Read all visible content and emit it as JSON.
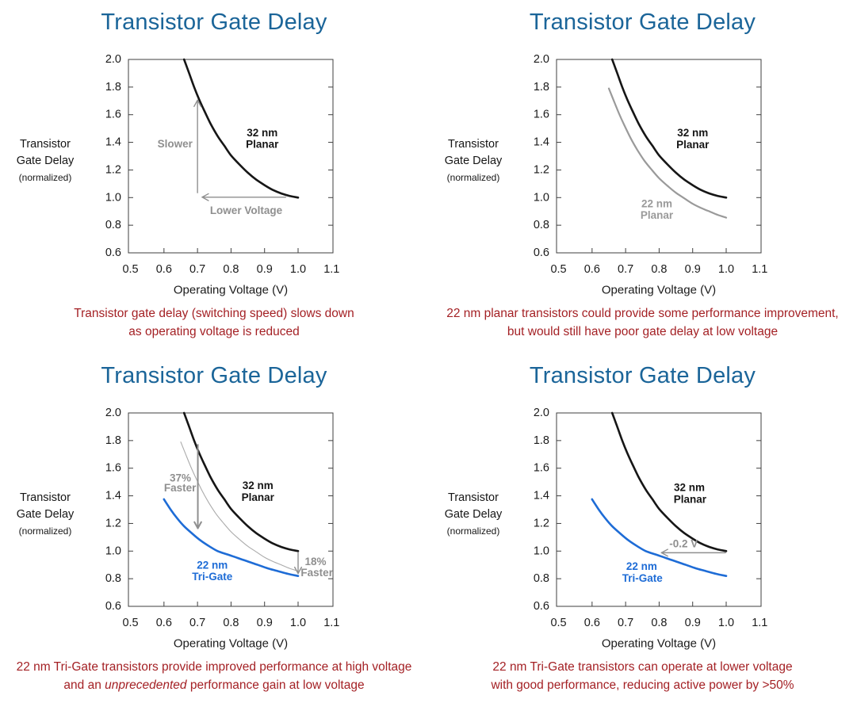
{
  "colors": {
    "title_blue": "#1b6599",
    "caption_red": "#a42125",
    "curve_black": "#161616",
    "curve_gray": "#9a9a9a",
    "curve_gray_thin": "#ababab",
    "curve_blue": "#1e6cd6",
    "annotation_gray": "#8f8f8f",
    "axis": "#3f3f3f",
    "tick_text": "#1a1a1a"
  },
  "chart_data": [
    {
      "type": "line",
      "title": "Transistor Gate Delay",
      "xlabel": "Operating Voltage (V)",
      "ylabel": [
        "Transistor",
        "Gate Delay",
        "(normalized)"
      ],
      "xlim": [
        0.5,
        1.1
      ],
      "ylim": [
        0.6,
        2.0
      ],
      "xticks": [
        0.5,
        0.6,
        0.7,
        0.8,
        0.9,
        1.0,
        1.1
      ],
      "yticks": [
        0.6,
        0.8,
        1.0,
        1.2,
        1.4,
        1.6,
        1.8,
        2.0
      ],
      "grid": false,
      "series": [
        {
          "name": "32 nm Planar",
          "color": "#161616",
          "width": 2.6,
          "points": [
            [
              0.66,
              2.0
            ],
            [
              0.675,
              1.9
            ],
            [
              0.69,
              1.8
            ],
            [
              0.705,
              1.71
            ],
            [
              0.72,
              1.63
            ],
            [
              0.74,
              1.53
            ],
            [
              0.76,
              1.445
            ],
            [
              0.78,
              1.375
            ],
            [
              0.8,
              1.305
            ],
            [
              0.825,
              1.24
            ],
            [
              0.85,
              1.18
            ],
            [
              0.875,
              1.13
            ],
            [
              0.9,
              1.09
            ],
            [
              0.925,
              1.055
            ],
            [
              0.95,
              1.03
            ],
            [
              0.975,
              1.012
            ],
            [
              1.0,
              1.0
            ]
          ]
        }
      ],
      "labels": [
        {
          "text": "32 nm",
          "x": 0.893,
          "y": 1.47,
          "color": "#161616"
        },
        {
          "text": "Planar",
          "x": 0.893,
          "y": 1.385,
          "color": "#161616"
        },
        {
          "text": "Slower",
          "x": 0.633,
          "y": 1.39,
          "color": "#8f8f8f"
        },
        {
          "text": "Lower Voltage",
          "x": 0.845,
          "y": 0.908,
          "color": "#8f8f8f"
        }
      ],
      "arrows": [
        {
          "from": [
            0.7,
            1.035
          ],
          "to": [
            0.7,
            1.705
          ],
          "width": 1.4
        },
        {
          "from": [
            0.963,
            1.003
          ],
          "to": [
            0.714,
            1.003
          ],
          "width": 1.4
        }
      ],
      "caption": [
        [
          {
            "text": "Transistor gate delay (switching speed) slows down",
            "italic": false
          }
        ],
        [
          {
            "text": "as operating voltage is reduced",
            "italic": false
          }
        ]
      ]
    },
    {
      "type": "line",
      "title": "Transistor Gate Delay",
      "xlabel": "Operating Voltage (V)",
      "ylabel": [
        "Transistor",
        "Gate Delay",
        "(normalized)"
      ],
      "xlim": [
        0.5,
        1.1
      ],
      "ylim": [
        0.6,
        2.0
      ],
      "xticks": [
        0.5,
        0.6,
        0.7,
        0.8,
        0.9,
        1.0,
        1.1
      ],
      "yticks": [
        0.6,
        0.8,
        1.0,
        1.2,
        1.4,
        1.6,
        1.8,
        2.0
      ],
      "grid": false,
      "series": [
        {
          "name": "22 nm Planar",
          "color": "#9a9a9a",
          "width": 2.2,
          "points": [
            [
              0.65,
              1.79
            ],
            [
              0.665,
              1.7
            ],
            [
              0.68,
              1.61
            ],
            [
              0.695,
              1.53
            ],
            [
              0.715,
              1.43
            ],
            [
              0.735,
              1.345
            ],
            [
              0.755,
              1.27
            ],
            [
              0.775,
              1.21
            ],
            [
              0.8,
              1.14
            ],
            [
              0.825,
              1.085
            ],
            [
              0.85,
              1.035
            ],
            [
              0.875,
              0.995
            ],
            [
              0.9,
              0.955
            ],
            [
              0.925,
              0.925
            ],
            [
              0.95,
              0.9
            ],
            [
              0.975,
              0.875
            ],
            [
              1.0,
              0.855
            ]
          ]
        },
        {
          "name": "32 nm Planar",
          "color": "#161616",
          "width": 2.6,
          "points": [
            [
              0.66,
              2.0
            ],
            [
              0.675,
              1.9
            ],
            [
              0.69,
              1.8
            ],
            [
              0.705,
              1.71
            ],
            [
              0.72,
              1.63
            ],
            [
              0.74,
              1.53
            ],
            [
              0.76,
              1.445
            ],
            [
              0.78,
              1.375
            ],
            [
              0.8,
              1.305
            ],
            [
              0.825,
              1.24
            ],
            [
              0.85,
              1.18
            ],
            [
              0.875,
              1.13
            ],
            [
              0.9,
              1.09
            ],
            [
              0.925,
              1.055
            ],
            [
              0.95,
              1.03
            ],
            [
              0.975,
              1.012
            ],
            [
              1.0,
              1.0
            ]
          ]
        }
      ],
      "labels": [
        {
          "text": "32 nm",
          "x": 0.9,
          "y": 1.468,
          "color": "#161616"
        },
        {
          "text": "Planar",
          "x": 0.9,
          "y": 1.382,
          "color": "#161616"
        },
        {
          "text": "22 nm",
          "x": 0.793,
          "y": 0.955,
          "color": "#9a9a9a"
        },
        {
          "text": "Planar",
          "x": 0.793,
          "y": 0.872,
          "color": "#9a9a9a"
        }
      ],
      "arrows": [],
      "caption": [
        [
          {
            "text": "22 nm planar transistors could provide some performance improvement,",
            "italic": false
          }
        ],
        [
          {
            "text": "but would still have poor gate delay at low voltage",
            "italic": false
          }
        ]
      ]
    },
    {
      "type": "line",
      "title": "Transistor Gate Delay",
      "xlabel": "Operating Voltage (V)",
      "ylabel": [
        "Transistor",
        "Gate Delay",
        "(normalized)"
      ],
      "xlim": [
        0.5,
        1.1
      ],
      "ylim": [
        0.6,
        2.0
      ],
      "xticks": [
        0.5,
        0.6,
        0.7,
        0.8,
        0.9,
        1.0,
        1.1
      ],
      "yticks": [
        0.6,
        0.8,
        1.0,
        1.2,
        1.4,
        1.6,
        1.8,
        2.0
      ],
      "grid": false,
      "series": [
        {
          "name": "22 nm Planar (reference)",
          "color": "#ababab",
          "width": 1.1,
          "points": [
            [
              0.65,
              1.79
            ],
            [
              0.665,
              1.7
            ],
            [
              0.68,
              1.61
            ],
            [
              0.695,
              1.53
            ],
            [
              0.715,
              1.43
            ],
            [
              0.735,
              1.345
            ],
            [
              0.755,
              1.27
            ],
            [
              0.775,
              1.21
            ],
            [
              0.8,
              1.14
            ],
            [
              0.825,
              1.085
            ],
            [
              0.85,
              1.035
            ],
            [
              0.875,
              0.995
            ],
            [
              0.9,
              0.955
            ],
            [
              0.925,
              0.925
            ],
            [
              0.95,
              0.9
            ],
            [
              0.975,
              0.875
            ],
            [
              1.0,
              0.855
            ]
          ]
        },
        {
          "name": "32 nm Planar",
          "color": "#161616",
          "width": 2.6,
          "points": [
            [
              0.66,
              2.0
            ],
            [
              0.675,
              1.9
            ],
            [
              0.69,
              1.8
            ],
            [
              0.705,
              1.71
            ],
            [
              0.72,
              1.63
            ],
            [
              0.74,
              1.53
            ],
            [
              0.76,
              1.445
            ],
            [
              0.78,
              1.375
            ],
            [
              0.8,
              1.305
            ],
            [
              0.825,
              1.24
            ],
            [
              0.85,
              1.18
            ],
            [
              0.875,
              1.13
            ],
            [
              0.9,
              1.09
            ],
            [
              0.925,
              1.055
            ],
            [
              0.95,
              1.03
            ],
            [
              0.975,
              1.012
            ],
            [
              1.0,
              1.0
            ]
          ]
        },
        {
          "name": "22 nm Tri-Gate",
          "color": "#1e6cd6",
          "width": 2.6,
          "points": [
            [
              0.6,
              1.375
            ],
            [
              0.62,
              1.3
            ],
            [
              0.64,
              1.235
            ],
            [
              0.66,
              1.18
            ],
            [
              0.685,
              1.125
            ],
            [
              0.71,
              1.075
            ],
            [
              0.735,
              1.035
            ],
            [
              0.76,
              1.0
            ],
            [
              0.79,
              0.975
            ],
            [
              0.82,
              0.95
            ],
            [
              0.85,
              0.925
            ],
            [
              0.88,
              0.9
            ],
            [
              0.91,
              0.875
            ],
            [
              0.94,
              0.855
            ],
            [
              0.97,
              0.835
            ],
            [
              1.0,
              0.82
            ]
          ]
        }
      ],
      "labels": [
        {
          "text": "32 nm",
          "x": 0.88,
          "y": 1.475,
          "color": "#161616"
        },
        {
          "text": "Planar",
          "x": 0.88,
          "y": 1.39,
          "color": "#161616"
        },
        {
          "text": "37%",
          "x": 0.649,
          "y": 1.53,
          "color": "#8f8f8f"
        },
        {
          "text": "Faster",
          "x": 0.648,
          "y": 1.458,
          "color": "#8f8f8f"
        },
        {
          "text": "18%",
          "x": 1.052,
          "y": 0.924,
          "color": "#8f8f8f"
        },
        {
          "text": "Faster",
          "x": 1.056,
          "y": 0.843,
          "color": "#8f8f8f"
        },
        {
          "text": "22 nm",
          "x": 0.744,
          "y": 0.898,
          "color": "#1e6cd6"
        },
        {
          "text": "Tri-Gate",
          "x": 0.744,
          "y": 0.815,
          "color": "#1e6cd6"
        }
      ],
      "arrows": [
        {
          "from": [
            0.701,
            1.77
          ],
          "to": [
            0.701,
            1.165
          ],
          "width": 2.0
        },
        {
          "from": [
            1.0,
            0.988
          ],
          "to": [
            1.0,
            0.838
          ],
          "width": 1.4
        }
      ],
      "caption": [
        [
          {
            "text": "22 nm Tri-Gate transistors provide improved performance at high voltage",
            "italic": false
          }
        ],
        [
          {
            "text": "and an ",
            "italic": false
          },
          {
            "text": "unprecedented",
            "italic": true
          },
          {
            "text": " performance gain at low voltage",
            "italic": false
          }
        ]
      ]
    },
    {
      "type": "line",
      "title": "Transistor Gate Delay",
      "xlabel": "Operating Voltage (V)",
      "ylabel": [
        "Transistor",
        "Gate Delay",
        "(normalized)"
      ],
      "xlim": [
        0.5,
        1.1
      ],
      "ylim": [
        0.6,
        2.0
      ],
      "xticks": [
        0.5,
        0.6,
        0.7,
        0.8,
        0.9,
        1.0,
        1.1
      ],
      "yticks": [
        0.6,
        0.8,
        1.0,
        1.2,
        1.4,
        1.6,
        1.8,
        2.0
      ],
      "grid": false,
      "series": [
        {
          "name": "32 nm Planar",
          "color": "#161616",
          "width": 2.6,
          "points": [
            [
              0.66,
              2.0
            ],
            [
              0.675,
              1.9
            ],
            [
              0.69,
              1.8
            ],
            [
              0.705,
              1.71
            ],
            [
              0.72,
              1.63
            ],
            [
              0.74,
              1.53
            ],
            [
              0.76,
              1.445
            ],
            [
              0.78,
              1.375
            ],
            [
              0.8,
              1.305
            ],
            [
              0.825,
              1.24
            ],
            [
              0.85,
              1.18
            ],
            [
              0.875,
              1.13
            ],
            [
              0.9,
              1.09
            ],
            [
              0.925,
              1.055
            ],
            [
              0.95,
              1.03
            ],
            [
              0.975,
              1.012
            ],
            [
              1.0,
              1.0
            ]
          ]
        },
        {
          "name": "22 nm Tri-Gate",
          "color": "#1e6cd6",
          "width": 2.6,
          "points": [
            [
              0.6,
              1.375
            ],
            [
              0.62,
              1.3
            ],
            [
              0.64,
              1.235
            ],
            [
              0.66,
              1.18
            ],
            [
              0.685,
              1.125
            ],
            [
              0.71,
              1.075
            ],
            [
              0.735,
              1.035
            ],
            [
              0.76,
              1.0
            ],
            [
              0.79,
              0.975
            ],
            [
              0.82,
              0.95
            ],
            [
              0.85,
              0.925
            ],
            [
              0.88,
              0.9
            ],
            [
              0.91,
              0.875
            ],
            [
              0.94,
              0.855
            ],
            [
              0.97,
              0.835
            ],
            [
              1.0,
              0.82
            ]
          ]
        }
      ],
      "labels": [
        {
          "text": "32 nm",
          "x": 0.89,
          "y": 1.462,
          "color": "#161616"
        },
        {
          "text": "Planar",
          "x": 0.892,
          "y": 1.374,
          "color": "#161616"
        },
        {
          "text": "-0.2 V",
          "x": 0.873,
          "y": 1.052,
          "color": "#8f8f8f"
        },
        {
          "text": "22 nm",
          "x": 0.748,
          "y": 0.89,
          "color": "#1e6cd6"
        },
        {
          "text": "Tri-Gate",
          "x": 0.75,
          "y": 0.803,
          "color": "#1e6cd6"
        }
      ],
      "arrows": [
        {
          "from": [
            0.998,
            0.988
          ],
          "to": [
            0.807,
            0.988
          ],
          "width": 1.4
        }
      ],
      "caption": [
        [
          {
            "text": "22 nm Tri-Gate transistors can operate at lower voltage",
            "italic": false
          }
        ],
        [
          {
            "text": "with good performance, reducing active power by >50%",
            "italic": false
          }
        ]
      ]
    }
  ]
}
